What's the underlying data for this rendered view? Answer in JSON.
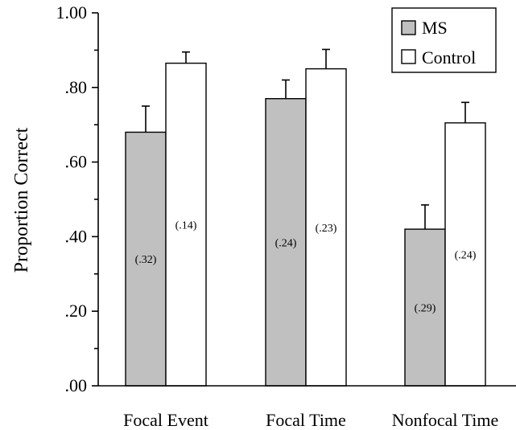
{
  "chart_data": {
    "type": "bar",
    "ylabel": "Proportion Correct",
    "xlabel": "",
    "ylim": [
      0,
      1.0
    ],
    "yticks": [
      {
        "value": 0.0,
        "label": ".00"
      },
      {
        "value": 0.2,
        "label": ".20"
      },
      {
        "value": 0.4,
        "label": ".40"
      },
      {
        "value": 0.6,
        "label": ".60"
      },
      {
        "value": 0.8,
        "label": ".80"
      },
      {
        "value": 1.0,
        "label": "1.00"
      }
    ],
    "minor_yticks": [
      0.1,
      0.3,
      0.5,
      0.7,
      0.9
    ],
    "categories": [
      "Focal Event",
      "Focal Time",
      "Nonfocal Time"
    ],
    "series": [
      {
        "name": "MS",
        "color": "#c0c0c0",
        "values": [
          0.68,
          0.77,
          0.42
        ],
        "errors": [
          0.07,
          0.05,
          0.065
        ],
        "sd_labels": [
          "(.32)",
          "(.24)",
          "(.29)"
        ]
      },
      {
        "name": "Control",
        "color": "#ffffff",
        "values": [
          0.865,
          0.85,
          0.705
        ],
        "errors": [
          0.03,
          0.052,
          0.055
        ],
        "sd_labels": [
          "(.14)",
          "(.23)",
          "(.24)"
        ]
      }
    ],
    "legend_position": "top-right",
    "grid": false
  }
}
